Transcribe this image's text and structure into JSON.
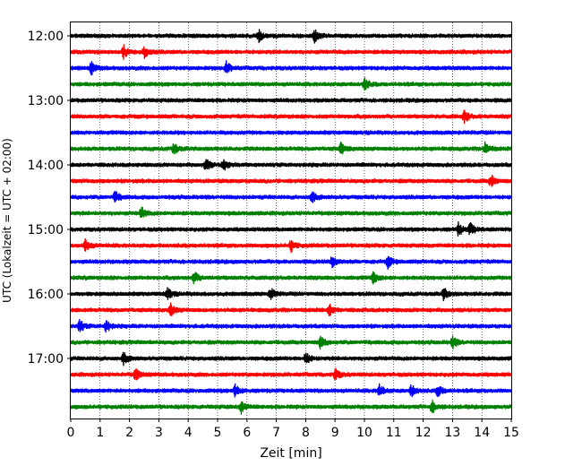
{
  "chart_data": {
    "type": "line",
    "subtype": "helicorder",
    "xlabel": "Zeit  [min]",
    "ylabel": "UTC (Lokalzeit = UTC + 02:00)",
    "xlim": [
      0,
      15
    ],
    "x_ticks": [
      "0",
      "1",
      "2",
      "3",
      "4",
      "5",
      "6",
      "7",
      "8",
      "9",
      "10",
      "11",
      "12",
      "13",
      "14",
      "15"
    ],
    "y_tick_labels": [
      "12:00",
      "13:00",
      "14:00",
      "15:00",
      "16:00",
      "17:00"
    ],
    "vertical_gridlines": "dotted, every 1 min",
    "trace_colors": [
      "#000000",
      "#ff0000",
      "#0000ff",
      "#008000"
    ],
    "traces": [
      {
        "start": "12:00",
        "color": "#000000",
        "events_min": [
          6.4,
          8.3
        ]
      },
      {
        "start": "12:15",
        "color": "#ff0000",
        "events_min": [
          1.8,
          2.5
        ]
      },
      {
        "start": "12:30",
        "color": "#0000ff",
        "events_min": [
          0.7,
          5.3
        ]
      },
      {
        "start": "12:45",
        "color": "#008000",
        "events_min": [
          10.0
        ]
      },
      {
        "start": "13:00",
        "color": "#000000",
        "events_min": []
      },
      {
        "start": "13:15",
        "color": "#ff0000",
        "events_min": [
          13.4
        ]
      },
      {
        "start": "13:30",
        "color": "#0000ff",
        "events_min": []
      },
      {
        "start": "13:45",
        "color": "#008000",
        "events_min": [
          3.5,
          9.2,
          14.1
        ]
      },
      {
        "start": "14:00",
        "color": "#000000",
        "events_min": [
          4.6,
          5.2
        ]
      },
      {
        "start": "14:15",
        "color": "#ff0000",
        "events_min": [
          14.3
        ]
      },
      {
        "start": "14:30",
        "color": "#0000ff",
        "events_min": [
          1.5,
          8.2
        ]
      },
      {
        "start": "14:45",
        "color": "#008000",
        "events_min": [
          2.4
        ]
      },
      {
        "start": "15:00",
        "color": "#000000",
        "events_min": [
          13.2,
          13.6
        ]
      },
      {
        "start": "15:15",
        "color": "#ff0000",
        "events_min": [
          0.5,
          7.5
        ]
      },
      {
        "start": "15:30",
        "color": "#0000ff",
        "events_min": [
          8.9,
          10.8
        ]
      },
      {
        "start": "15:45",
        "color": "#008000",
        "events_min": [
          4.2,
          10.3
        ]
      },
      {
        "start": "16:00",
        "color": "#000000",
        "events_min": [
          3.3,
          6.8,
          12.7
        ]
      },
      {
        "start": "16:15",
        "color": "#ff0000",
        "events_min": [
          3.4,
          8.8
        ]
      },
      {
        "start": "16:30",
        "color": "#0000ff",
        "events_min": [
          0.3,
          1.2
        ]
      },
      {
        "start": "16:45",
        "color": "#008000",
        "events_min": [
          8.5,
          13.0
        ]
      },
      {
        "start": "17:00",
        "color": "#000000",
        "events_min": [
          1.8,
          8.0
        ]
      },
      {
        "start": "17:15",
        "color": "#ff0000",
        "events_min": [
          2.2,
          9.0
        ]
      },
      {
        "start": "17:30",
        "color": "#0000ff",
        "events_min": [
          5.6,
          10.5,
          11.6,
          12.5
        ]
      },
      {
        "start": "17:45",
        "color": "#008000",
        "events_min": [
          5.8,
          12.3
        ]
      }
    ]
  }
}
